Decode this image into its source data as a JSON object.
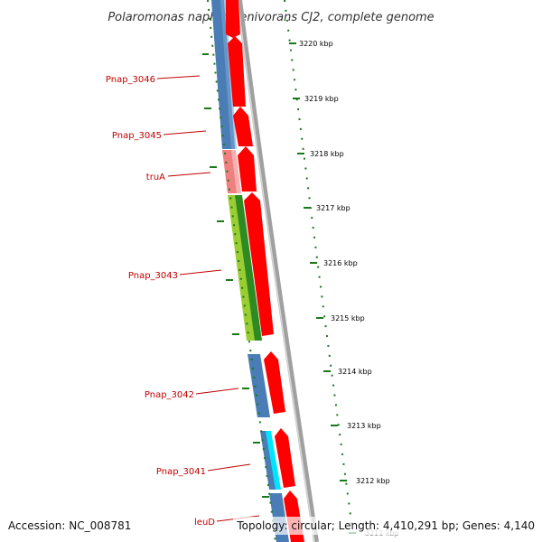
{
  "title": "Polaromonas naphthalenivorans CJ2, complete genome",
  "footer": {
    "accession": "Accession: NC_008781",
    "info": "Topology: circular; Length: 4,410,291 bp; Genes: 4,140"
  },
  "colors": {
    "genome_line": "#888888",
    "forward_gene": "#ff0000",
    "reverse_gene": "#4a7db5",
    "trna_gene": "#f08080",
    "highlight_gene": "#9acd32",
    "cyan_gene": "#00e5ff",
    "label": "#c00000",
    "tick": "#1a7a1a"
  },
  "genes": [
    {
      "name": "Pnap_3046",
      "strand": "reverse",
      "label": true
    },
    {
      "name": "Pnap_3045",
      "strand": "reverse",
      "label": true
    },
    {
      "name": "truA",
      "strand": "reverse",
      "label": true
    },
    {
      "name": "Pnap_3043",
      "strand": "reverse",
      "label": true
    },
    {
      "name": "Pnap_3042",
      "strand": "reverse",
      "label": true
    },
    {
      "name": "Pnap_3041",
      "strand": "reverse",
      "label": true
    },
    {
      "name": "leuD",
      "strand": "reverse",
      "label": true
    }
  ],
  "ticks": [
    {
      "label": "3220 kbp"
    },
    {
      "label": "3219 kbp"
    },
    {
      "label": "3218 kbp"
    },
    {
      "label": "3217 kbp"
    },
    {
      "label": "3216 kbp"
    },
    {
      "label": "3215 kbp"
    },
    {
      "label": "3214 kbp"
    },
    {
      "label": "3213 kbp"
    },
    {
      "label": "3212 kbp"
    },
    {
      "label": "3211 kbp"
    }
  ]
}
